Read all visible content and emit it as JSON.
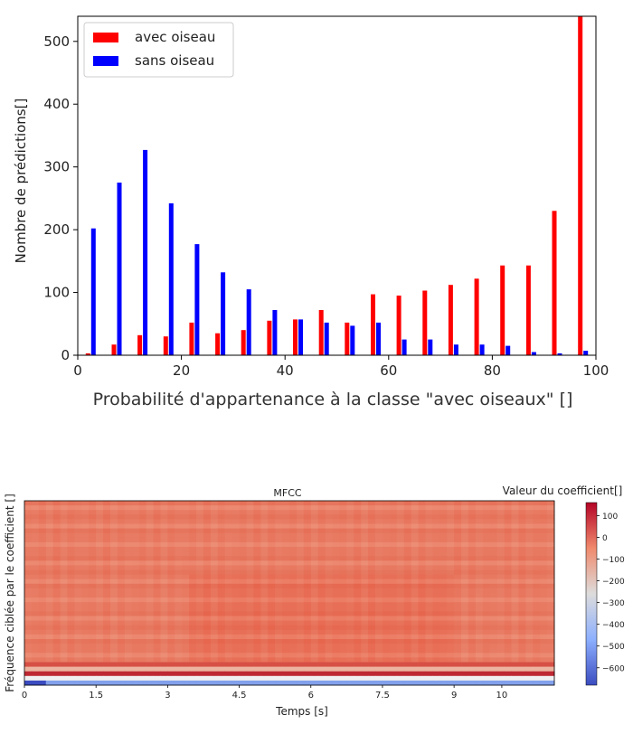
{
  "chart_data": [
    {
      "type": "bar",
      "xlabel": "Probabilité d'appartenance à la classe \"avec oiseaux\" []",
      "ylabel": "Nombre de prédictions[]",
      "xlim": [
        0,
        100
      ],
      "ylim": [
        0,
        540
      ],
      "xticks": [
        0,
        20,
        40,
        60,
        80,
        100
      ],
      "yticks": [
        0,
        100,
        200,
        300,
        400,
        500
      ],
      "legend_position": "top-left",
      "bin_width": 5,
      "series": [
        {
          "name": "avec oiseau",
          "color": "#ff0000",
          "x": [
            2.5,
            7.5,
            12.5,
            17.5,
            22.5,
            27.5,
            32.5,
            37.5,
            42.5,
            47.5,
            52.5,
            57.5,
            62.5,
            67.5,
            72.5,
            77.5,
            82.5,
            87.5,
            92.5,
            97.5
          ],
          "values": [
            3,
            17,
            32,
            30,
            52,
            35,
            40,
            55,
            57,
            72,
            52,
            97,
            95,
            103,
            112,
            122,
            143,
            143,
            230,
            540
          ]
        },
        {
          "name": "sans oiseau",
          "color": "#0000ff",
          "x": [
            2.5,
            7.5,
            12.5,
            17.5,
            22.5,
            27.5,
            32.5,
            37.5,
            42.5,
            47.5,
            52.5,
            57.5,
            62.5,
            67.5,
            72.5,
            77.5,
            82.5,
            87.5,
            92.5,
            97.5
          ],
          "values": [
            202,
            275,
            327,
            242,
            177,
            132,
            105,
            72,
            57,
            52,
            47,
            52,
            25,
            25,
            17,
            17,
            15,
            5,
            3,
            7
          ]
        }
      ]
    },
    {
      "type": "heatmap",
      "title": "MFCC",
      "xlabel": "Temps [s]",
      "ylabel": "Fréquence ciblée par le coefficient []",
      "xlim": [
        0,
        11.1
      ],
      "xticks": [
        "0",
        "1.5",
        "3",
        "4.5",
        "6",
        "7.5",
        "9",
        "10"
      ],
      "xtick_values": [
        0,
        1.5,
        3,
        4.5,
        6,
        7.5,
        9,
        10
      ],
      "colorbar": {
        "label": "Valeur du coefficient[]",
        "colormap": "coolwarm",
        "range": [
          -680,
          160
        ],
        "ticks": [
          "100",
          "0",
          "−100",
          "−200",
          "−300",
          "−400",
          "−500",
          "−600"
        ],
        "tick_values": [
          100,
          0,
          -100,
          -200,
          -300,
          -400,
          -500,
          -600
        ]
      },
      "n_coefficients": 40
    }
  ]
}
